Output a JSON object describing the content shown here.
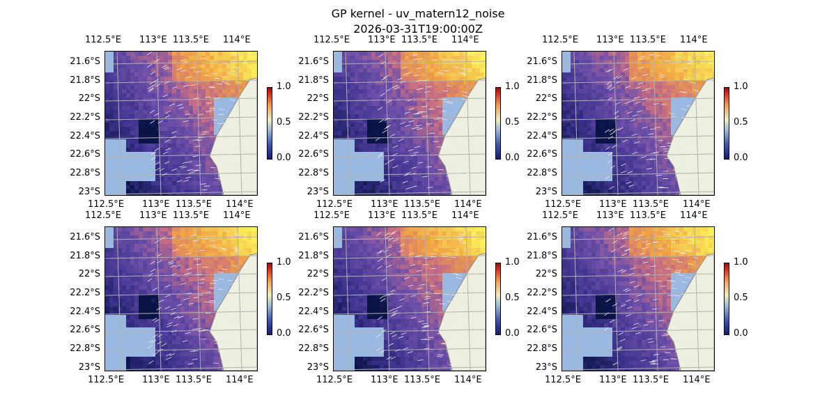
{
  "figure": {
    "title_line1": "GP kernel - uv_matern12_noise",
    "title_line2": "2026-03-31T19:00:00Z"
  },
  "axes": {
    "lon_labels": [
      "112.5°E",
      "113°E",
      "113.5°E",
      "114°E"
    ],
    "lat_labels": [
      "21.6°S",
      "21.8°S",
      "22°S",
      "22.2°S",
      "22.4°S",
      "22.6°S",
      "22.8°S",
      "23°S"
    ]
  },
  "colorbar": {
    "ticks": [
      "0.0",
      "0.5",
      "1.0"
    ],
    "range": [
      0.0,
      1.0
    ]
  },
  "panels": [
    {
      "id": "panel-1"
    },
    {
      "id": "panel-2"
    },
    {
      "id": "panel-3"
    },
    {
      "id": "panel-4"
    },
    {
      "id": "panel-5"
    },
    {
      "id": "panel-6"
    }
  ],
  "colors": {
    "ocean": "#9bb8e0",
    "land": "#efefdf",
    "grid": "#b0b0b0"
  }
}
